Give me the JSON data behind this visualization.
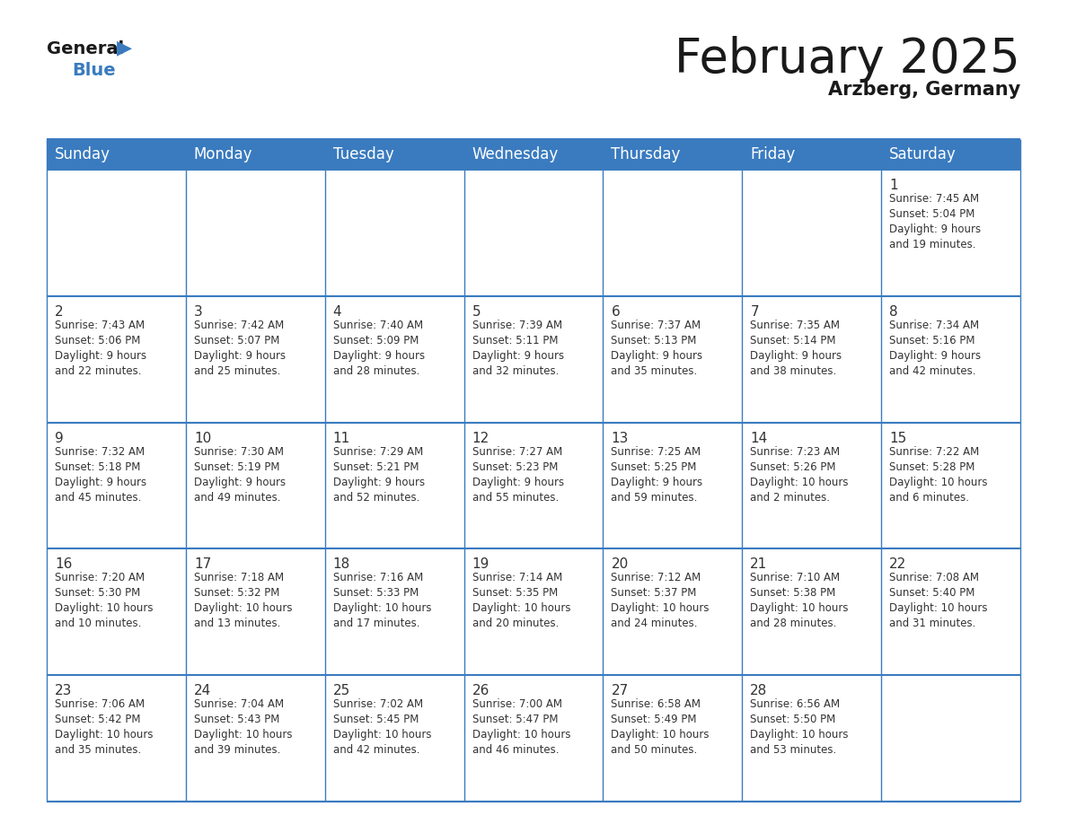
{
  "title": "February 2025",
  "subtitle": "Arzberg, Germany",
  "header_color": "#3a7bbf",
  "header_text_color": "#ffffff",
  "cell_bg_even": "#f5f7fa",
  "cell_bg_odd": "#ffffff",
  "border_color": "#3a7bbf",
  "line_color": "#cccccc",
  "day_headers": [
    "Sunday",
    "Monday",
    "Tuesday",
    "Wednesday",
    "Thursday",
    "Friday",
    "Saturday"
  ],
  "title_fontsize": 38,
  "subtitle_fontsize": 15,
  "header_fontsize": 12,
  "day_num_fontsize": 11,
  "cell_fontsize": 8.5,
  "logo_general_size": 14,
  "logo_blue_size": 14,
  "calendar": [
    [
      null,
      null,
      null,
      null,
      null,
      null,
      1
    ],
    [
      2,
      3,
      4,
      5,
      6,
      7,
      8
    ],
    [
      9,
      10,
      11,
      12,
      13,
      14,
      15
    ],
    [
      16,
      17,
      18,
      19,
      20,
      21,
      22
    ],
    [
      23,
      24,
      25,
      26,
      27,
      28,
      null
    ]
  ],
  "cell_data": {
    "1": {
      "sunrise": "7:45 AM",
      "sunset": "5:04 PM",
      "daylight_h": "9 hours",
      "daylight_m": "19 minutes."
    },
    "2": {
      "sunrise": "7:43 AM",
      "sunset": "5:06 PM",
      "daylight_h": "9 hours",
      "daylight_m": "22 minutes."
    },
    "3": {
      "sunrise": "7:42 AM",
      "sunset": "5:07 PM",
      "daylight_h": "9 hours",
      "daylight_m": "25 minutes."
    },
    "4": {
      "sunrise": "7:40 AM",
      "sunset": "5:09 PM",
      "daylight_h": "9 hours",
      "daylight_m": "28 minutes."
    },
    "5": {
      "sunrise": "7:39 AM",
      "sunset": "5:11 PM",
      "daylight_h": "9 hours",
      "daylight_m": "32 minutes."
    },
    "6": {
      "sunrise": "7:37 AM",
      "sunset": "5:13 PM",
      "daylight_h": "9 hours",
      "daylight_m": "35 minutes."
    },
    "7": {
      "sunrise": "7:35 AM",
      "sunset": "5:14 PM",
      "daylight_h": "9 hours",
      "daylight_m": "38 minutes."
    },
    "8": {
      "sunrise": "7:34 AM",
      "sunset": "5:16 PM",
      "daylight_h": "9 hours",
      "daylight_m": "42 minutes."
    },
    "9": {
      "sunrise": "7:32 AM",
      "sunset": "5:18 PM",
      "daylight_h": "9 hours",
      "daylight_m": "45 minutes."
    },
    "10": {
      "sunrise": "7:30 AM",
      "sunset": "5:19 PM",
      "daylight_h": "9 hours",
      "daylight_m": "49 minutes."
    },
    "11": {
      "sunrise": "7:29 AM",
      "sunset": "5:21 PM",
      "daylight_h": "9 hours",
      "daylight_m": "52 minutes."
    },
    "12": {
      "sunrise": "7:27 AM",
      "sunset": "5:23 PM",
      "daylight_h": "9 hours",
      "daylight_m": "55 minutes."
    },
    "13": {
      "sunrise": "7:25 AM",
      "sunset": "5:25 PM",
      "daylight_h": "9 hours",
      "daylight_m": "59 minutes."
    },
    "14": {
      "sunrise": "7:23 AM",
      "sunset": "5:26 PM",
      "daylight_h": "10 hours",
      "daylight_m": "2 minutes."
    },
    "15": {
      "sunrise": "7:22 AM",
      "sunset": "5:28 PM",
      "daylight_h": "10 hours",
      "daylight_m": "6 minutes."
    },
    "16": {
      "sunrise": "7:20 AM",
      "sunset": "5:30 PM",
      "daylight_h": "10 hours",
      "daylight_m": "10 minutes."
    },
    "17": {
      "sunrise": "7:18 AM",
      "sunset": "5:32 PM",
      "daylight_h": "10 hours",
      "daylight_m": "13 minutes."
    },
    "18": {
      "sunrise": "7:16 AM",
      "sunset": "5:33 PM",
      "daylight_h": "10 hours",
      "daylight_m": "17 minutes."
    },
    "19": {
      "sunrise": "7:14 AM",
      "sunset": "5:35 PM",
      "daylight_h": "10 hours",
      "daylight_m": "20 minutes."
    },
    "20": {
      "sunrise": "7:12 AM",
      "sunset": "5:37 PM",
      "daylight_h": "10 hours",
      "daylight_m": "24 minutes."
    },
    "21": {
      "sunrise": "7:10 AM",
      "sunset": "5:38 PM",
      "daylight_h": "10 hours",
      "daylight_m": "28 minutes."
    },
    "22": {
      "sunrise": "7:08 AM",
      "sunset": "5:40 PM",
      "daylight_h": "10 hours",
      "daylight_m": "31 minutes."
    },
    "23": {
      "sunrise": "7:06 AM",
      "sunset": "5:42 PM",
      "daylight_h": "10 hours",
      "daylight_m": "35 minutes."
    },
    "24": {
      "sunrise": "7:04 AM",
      "sunset": "5:43 PM",
      "daylight_h": "10 hours",
      "daylight_m": "39 minutes."
    },
    "25": {
      "sunrise": "7:02 AM",
      "sunset": "5:45 PM",
      "daylight_h": "10 hours",
      "daylight_m": "42 minutes."
    },
    "26": {
      "sunrise": "7:00 AM",
      "sunset": "5:47 PM",
      "daylight_h": "10 hours",
      "daylight_m": "46 minutes."
    },
    "27": {
      "sunrise": "6:58 AM",
      "sunset": "5:49 PM",
      "daylight_h": "10 hours",
      "daylight_m": "50 minutes."
    },
    "28": {
      "sunrise": "6:56 AM",
      "sunset": "5:50 PM",
      "daylight_h": "10 hours",
      "daylight_m": "53 minutes."
    }
  }
}
